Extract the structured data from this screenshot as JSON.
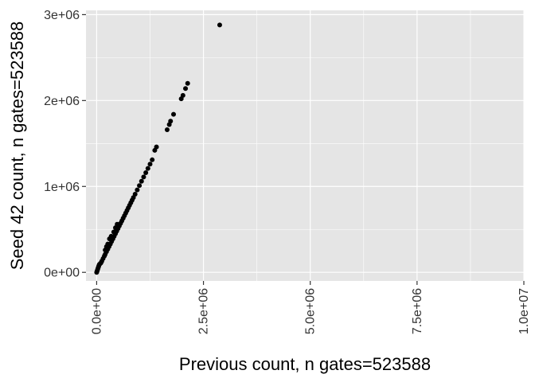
{
  "chart_data": {
    "type": "scatter",
    "title": "",
    "xlabel": "Previous count, n gates=523588",
    "ylabel": "Seed 42 count, n gates=523588",
    "xlim": [
      -250000,
      10000000
    ],
    "ylim": [
      -100000,
      3050000
    ],
    "x_ticks": [
      {
        "value": 0,
        "label": "0.0e+00"
      },
      {
        "value": 2500000,
        "label": "2.5e+06"
      },
      {
        "value": 5000000,
        "label": "5.0e+06"
      },
      {
        "value": 7500000,
        "label": "7.5e+06"
      },
      {
        "value": 10000000,
        "label": "1.0e+07"
      }
    ],
    "y_ticks": [
      {
        "value": 0,
        "label": "0e+00"
      },
      {
        "value": 1000000,
        "label": "1e+06"
      },
      {
        "value": 2000000,
        "label": "2e+06"
      },
      {
        "value": 3000000,
        "label": "3e+06"
      }
    ],
    "grid": true,
    "panel_color": "#e5e5e5",
    "grid_color": "#ffffff",
    "point_color": "#000000",
    "series": [
      {
        "points": [
          [
            0,
            0
          ],
          [
            10000,
            15000
          ],
          [
            20000,
            30000
          ],
          [
            30000,
            45000
          ],
          [
            40000,
            60000
          ],
          [
            50000,
            75000
          ],
          [
            60000,
            90000
          ],
          [
            80000,
            100000
          ],
          [
            100000,
            110000
          ],
          [
            120000,
            130000
          ],
          [
            150000,
            160000
          ],
          [
            180000,
            190000
          ],
          [
            200000,
            210000
          ],
          [
            230000,
            240000
          ],
          [
            260000,
            270000
          ],
          [
            290000,
            300000
          ],
          [
            320000,
            330000
          ],
          [
            350000,
            360000
          ],
          [
            380000,
            390000
          ],
          [
            410000,
            420000
          ],
          [
            440000,
            450000
          ],
          [
            470000,
            480000
          ],
          [
            500000,
            510000
          ],
          [
            530000,
            540000
          ],
          [
            560000,
            570000
          ],
          [
            590000,
            600000
          ],
          [
            620000,
            630000
          ],
          [
            650000,
            660000
          ],
          [
            680000,
            690000
          ],
          [
            710000,
            720000
          ],
          [
            740000,
            750000
          ],
          [
            770000,
            780000
          ],
          [
            800000,
            810000
          ],
          [
            830000,
            840000
          ],
          [
            860000,
            870000
          ],
          [
            900000,
            910000
          ],
          [
            950000,
            960000
          ],
          [
            1000000,
            1010000
          ],
          [
            1050000,
            1060000
          ],
          [
            1100000,
            1110000
          ],
          [
            1150000,
            1160000
          ],
          [
            1200000,
            1210000
          ],
          [
            1250000,
            1260000
          ],
          [
            1300000,
            1310000
          ],
          [
            1360000,
            1420000
          ],
          [
            1400000,
            1460000
          ],
          [
            1650000,
            1660000
          ],
          [
            1700000,
            1720000
          ],
          [
            1730000,
            1760000
          ],
          [
            1800000,
            1840000
          ],
          [
            1980000,
            2020000
          ],
          [
            2020000,
            2060000
          ],
          [
            2080000,
            2140000
          ],
          [
            2130000,
            2200000
          ],
          [
            2880000,
            2880000
          ],
          [
            200000,
            260000
          ],
          [
            230000,
            300000
          ],
          [
            260000,
            330000
          ],
          [
            300000,
            390000
          ],
          [
            340000,
            420000
          ],
          [
            400000,
            470000
          ],
          [
            440000,
            520000
          ],
          [
            480000,
            560000
          ]
        ]
      }
    ]
  }
}
